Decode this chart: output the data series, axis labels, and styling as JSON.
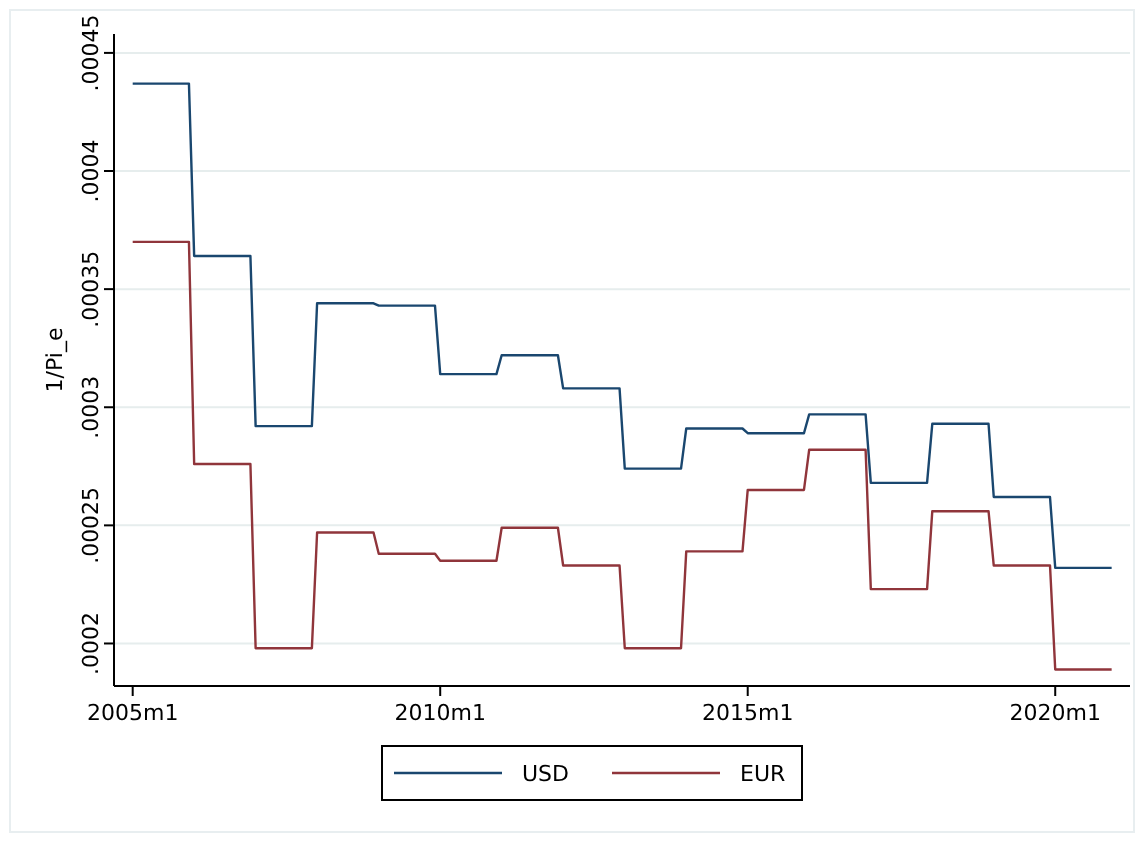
{
  "chart_data": {
    "type": "line",
    "ylabel": "1/Pi_e",
    "x": [
      "2005-01",
      "2005-12",
      "2006-01",
      "2006-12",
      "2007-01",
      "2007-12",
      "2008-01",
      "2008-12",
      "2009-01",
      "2009-12",
      "2010-01",
      "2010-12",
      "2011-01",
      "2011-12",
      "2012-01",
      "2012-12",
      "2013-01",
      "2013-12",
      "2014-01",
      "2014-12",
      "2015-01",
      "2015-12",
      "2016-01",
      "2016-12",
      "2017-01",
      "2017-12",
      "2018-01",
      "2018-12",
      "2019-01",
      "2019-12",
      "2020-01",
      "2020-12"
    ],
    "series": [
      {
        "name": "USD",
        "color": "#1a476f",
        "values": [
          0.000437,
          0.000437,
          0.000364,
          0.000364,
          0.000292,
          0.000292,
          0.000344,
          0.000344,
          0.000343,
          0.000343,
          0.000314,
          0.000314,
          0.000322,
          0.000322,
          0.000308,
          0.000308,
          0.000274,
          0.000274,
          0.000291,
          0.000291,
          0.000289,
          0.000289,
          0.000297,
          0.000297,
          0.000268,
          0.000268,
          0.000293,
          0.000293,
          0.000262,
          0.000262,
          0.000232,
          0.000232
        ]
      },
      {
        "name": "EUR",
        "color": "#90353b",
        "values": [
          0.00037,
          0.00037,
          0.000276,
          0.000276,
          0.000198,
          0.000198,
          0.000247,
          0.000247,
          0.000238,
          0.000238,
          0.000235,
          0.000235,
          0.000249,
          0.000249,
          0.000233,
          0.000233,
          0.000198,
          0.000198,
          0.000239,
          0.000239,
          0.000265,
          0.000265,
          0.000282,
          0.000282,
          0.000223,
          0.000223,
          0.000256,
          0.000256,
          0.000233,
          0.000233,
          0.000189,
          0.000189
        ]
      }
    ],
    "xlim": [
      "2004-09-12",
      "2021-03-20"
    ],
    "xticks": [
      {
        "value": "2005-01",
        "label": "2005m1"
      },
      {
        "value": "2010-01",
        "label": "2010m1"
      },
      {
        "value": "2015-01",
        "label": "2015m1"
      },
      {
        "value": "2020-01",
        "label": "2020m1"
      }
    ],
    "ylim": [
      0.000182,
      0.000458
    ],
    "yticks": [
      {
        "value": 0.0002,
        "label": ".0002"
      },
      {
        "value": 0.00025,
        "label": ".00025"
      },
      {
        "value": 0.0003,
        "label": ".0003"
      },
      {
        "value": 0.00035,
        "label": ".00035"
      },
      {
        "value": 0.0004,
        "label": ".0004"
      },
      {
        "value": 0.00045,
        "label": ".00045"
      }
    ],
    "grid": "y",
    "legend": "bottom",
    "marker": "none",
    "line_style": "solid"
  }
}
